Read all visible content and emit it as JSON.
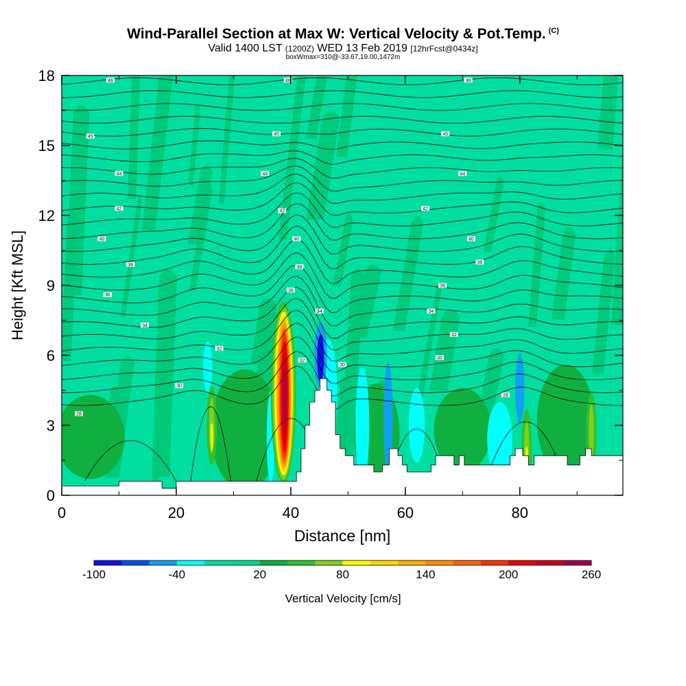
{
  "header": {
    "title": "Wind-Parallel Section at Max W: Vertical Velocity & Pot.Temp.",
    "copyright": "(C)",
    "valid_prefix": "Valid 1400 LST",
    "valid_utc": "(1200Z)",
    "valid_date": "WED 13 Feb 2019",
    "forecast": "[12hrFcst@0434z]",
    "box_info": "boxWmax=310@-33.67,19.00,1472m"
  },
  "chart_data": {
    "type": "heatmap",
    "title": "Wind-Parallel Section at Max W: Vertical Velocity & Pot.Temp.",
    "xlabel": "Distance [nm]",
    "ylabel": "Height [Kft MSL]",
    "xlim": [
      0,
      98
    ],
    "ylim": [
      0,
      18
    ],
    "x_ticks": [
      0,
      20,
      40,
      60,
      80
    ],
    "y_ticks": [
      0,
      3,
      6,
      9,
      12,
      15,
      18
    ],
    "background_value_range": "0 to 20 cm/s",
    "updraft_core": {
      "x_center": 38.7,
      "base_kft": 1.0,
      "top_kft": 7.7,
      "max_cms": 260
    },
    "downdraft_core": {
      "x_center": 45.2,
      "base_kft": 5.0,
      "top_kft": 7.0,
      "min_cms": -100
    },
    "secondary_updrafts": [
      {
        "x_center": 26.2,
        "top_kft": 4.6,
        "max_cms": 80
      },
      {
        "x_center": 81.2,
        "top_kft": 3.6,
        "max_cms": 80
      },
      {
        "x_center": 92.5,
        "top_kft": 4.3,
        "max_cms": 40
      }
    ],
    "terrain": [
      [
        0,
        0.4
      ],
      [
        10,
        0.4
      ],
      [
        10,
        0.6
      ],
      [
        17.5,
        0.6
      ],
      [
        17.5,
        0.3
      ],
      [
        20,
        0.3
      ],
      [
        20,
        0.6
      ],
      [
        41,
        0.6
      ],
      [
        41,
        1.0
      ],
      [
        41.8,
        1.0
      ],
      [
        41.8,
        2.0
      ],
      [
        42.5,
        2.0
      ],
      [
        42.5,
        3.0
      ],
      [
        43.3,
        3.0
      ],
      [
        43.3,
        4.0
      ],
      [
        44.2,
        4.0
      ],
      [
        44.2,
        4.5
      ],
      [
        45.1,
        4.5
      ],
      [
        45.1,
        5.0
      ],
      [
        46.3,
        5.0
      ],
      [
        46.3,
        4.5
      ],
      [
        47.1,
        4.5
      ],
      [
        47.1,
        4.0
      ],
      [
        47.8,
        4.0
      ],
      [
        47.8,
        2.6
      ],
      [
        48.6,
        2.6
      ],
      [
        48.6,
        2.0
      ],
      [
        49.5,
        2.0
      ],
      [
        49.5,
        1.7
      ],
      [
        51,
        1.7
      ],
      [
        51,
        1.3
      ],
      [
        54.5,
        1.3
      ],
      [
        54.5,
        1.0
      ],
      [
        56,
        1.0
      ],
      [
        56,
        1.3
      ],
      [
        57.2,
        1.3
      ],
      [
        57.2,
        2.0
      ],
      [
        58.7,
        2.0
      ],
      [
        58.7,
        1.7
      ],
      [
        59.5,
        1.7
      ],
      [
        59.5,
        1.3
      ],
      [
        60.3,
        1.3
      ],
      [
        60.3,
        1.0
      ],
      [
        64.5,
        1.0
      ],
      [
        64.5,
        1.3
      ],
      [
        65.3,
        1.3
      ],
      [
        65.3,
        1.7
      ],
      [
        68.5,
        1.7
      ],
      [
        68.5,
        1.3
      ],
      [
        69.4,
        1.3
      ],
      [
        69.4,
        1.7
      ],
      [
        70.3,
        1.7
      ],
      [
        70.3,
        1.3
      ],
      [
        78.3,
        1.3
      ],
      [
        78.3,
        1.7
      ],
      [
        79.2,
        1.7
      ],
      [
        79.2,
        2.0
      ],
      [
        80.5,
        2.0
      ],
      [
        80.5,
        1.7
      ],
      [
        81.5,
        1.7
      ],
      [
        81.5,
        1.3
      ],
      [
        82.5,
        1.3
      ],
      [
        82.5,
        1.7
      ],
      [
        88.3,
        1.7
      ],
      [
        88.3,
        1.3
      ],
      [
        90.5,
        1.3
      ],
      [
        90.5,
        1.7
      ],
      [
        91.5,
        1.7
      ],
      [
        91.5,
        2.0
      ],
      [
        92.5,
        2.0
      ],
      [
        92.5,
        1.7
      ],
      [
        98,
        1.7
      ]
    ],
    "isentrope_labels": [
      {
        "x": 8.5,
        "y": 17.8,
        "text": "46"
      },
      {
        "x": 39.5,
        "y": 17.8,
        "text": "46"
      },
      {
        "x": 71,
        "y": 17.8,
        "text": "46"
      },
      {
        "x": 5,
        "y": 15.4,
        "text": "45"
      },
      {
        "x": 37.5,
        "y": 15.5,
        "text": "45"
      },
      {
        "x": 67,
        "y": 15.5,
        "text": "45"
      },
      {
        "x": 10,
        "y": 13.8,
        "text": "44"
      },
      {
        "x": 35.5,
        "y": 13.8,
        "text": "44"
      },
      {
        "x": 70,
        "y": 13.8,
        "text": "44"
      },
      {
        "x": 10,
        "y": 12.3,
        "text": "42"
      },
      {
        "x": 38.5,
        "y": 12.2,
        "text": "42"
      },
      {
        "x": 63.5,
        "y": 12.3,
        "text": "42"
      },
      {
        "x": 7,
        "y": 11.0,
        "text": "40"
      },
      {
        "x": 41,
        "y": 11.0,
        "text": "40"
      },
      {
        "x": 71.5,
        "y": 11.0,
        "text": "40"
      },
      {
        "x": 12,
        "y": 9.9,
        "text": "38"
      },
      {
        "x": 41.5,
        "y": 9.8,
        "text": "38"
      },
      {
        "x": 73,
        "y": 10.0,
        "text": "38"
      },
      {
        "x": 8,
        "y": 8.6,
        "text": "36"
      },
      {
        "x": 40,
        "y": 8.8,
        "text": "36"
      },
      {
        "x": 66.5,
        "y": 9.0,
        "text": "36"
      },
      {
        "x": 14.5,
        "y": 7.3,
        "text": "34"
      },
      {
        "x": 45,
        "y": 7.9,
        "text": "34"
      },
      {
        "x": 64.5,
        "y": 7.9,
        "text": "34"
      },
      {
        "x": 27.5,
        "y": 6.3,
        "text": "32"
      },
      {
        "x": 42,
        "y": 5.8,
        "text": "32"
      },
      {
        "x": 68.5,
        "y": 6.9,
        "text": "32"
      },
      {
        "x": 20.5,
        "y": 4.7,
        "text": "30"
      },
      {
        "x": 49,
        "y": 5.6,
        "text": "30"
      },
      {
        "x": 66,
        "y": 5.9,
        "text": "30"
      },
      {
        "x": 3,
        "y": 3.5,
        "text": "28"
      },
      {
        "x": 77.5,
        "y": 4.3,
        "text": "28"
      }
    ],
    "colorbar": {
      "title": "Vertical Velocity [cm/s]",
      "tick_labels": [
        "-100",
        "-40",
        "20",
        "80",
        "140",
        "200",
        "260"
      ],
      "levels": [
        -100,
        -80,
        -60,
        -40,
        -20,
        0,
        20,
        40,
        60,
        80,
        100,
        120,
        140,
        160,
        180,
        200,
        220,
        240,
        260
      ],
      "colors": [
        "#1010e8",
        "#0050f0",
        "#10a0f0",
        "#00ffff",
        "#00e0a0",
        "#00d890",
        "#10b040",
        "#30c030",
        "#80d020",
        "#ffff00",
        "#ffd800",
        "#ffb000",
        "#ff9000",
        "#ff6010",
        "#ff3000",
        "#f00000",
        "#c80020",
        "#a00050"
      ]
    }
  }
}
